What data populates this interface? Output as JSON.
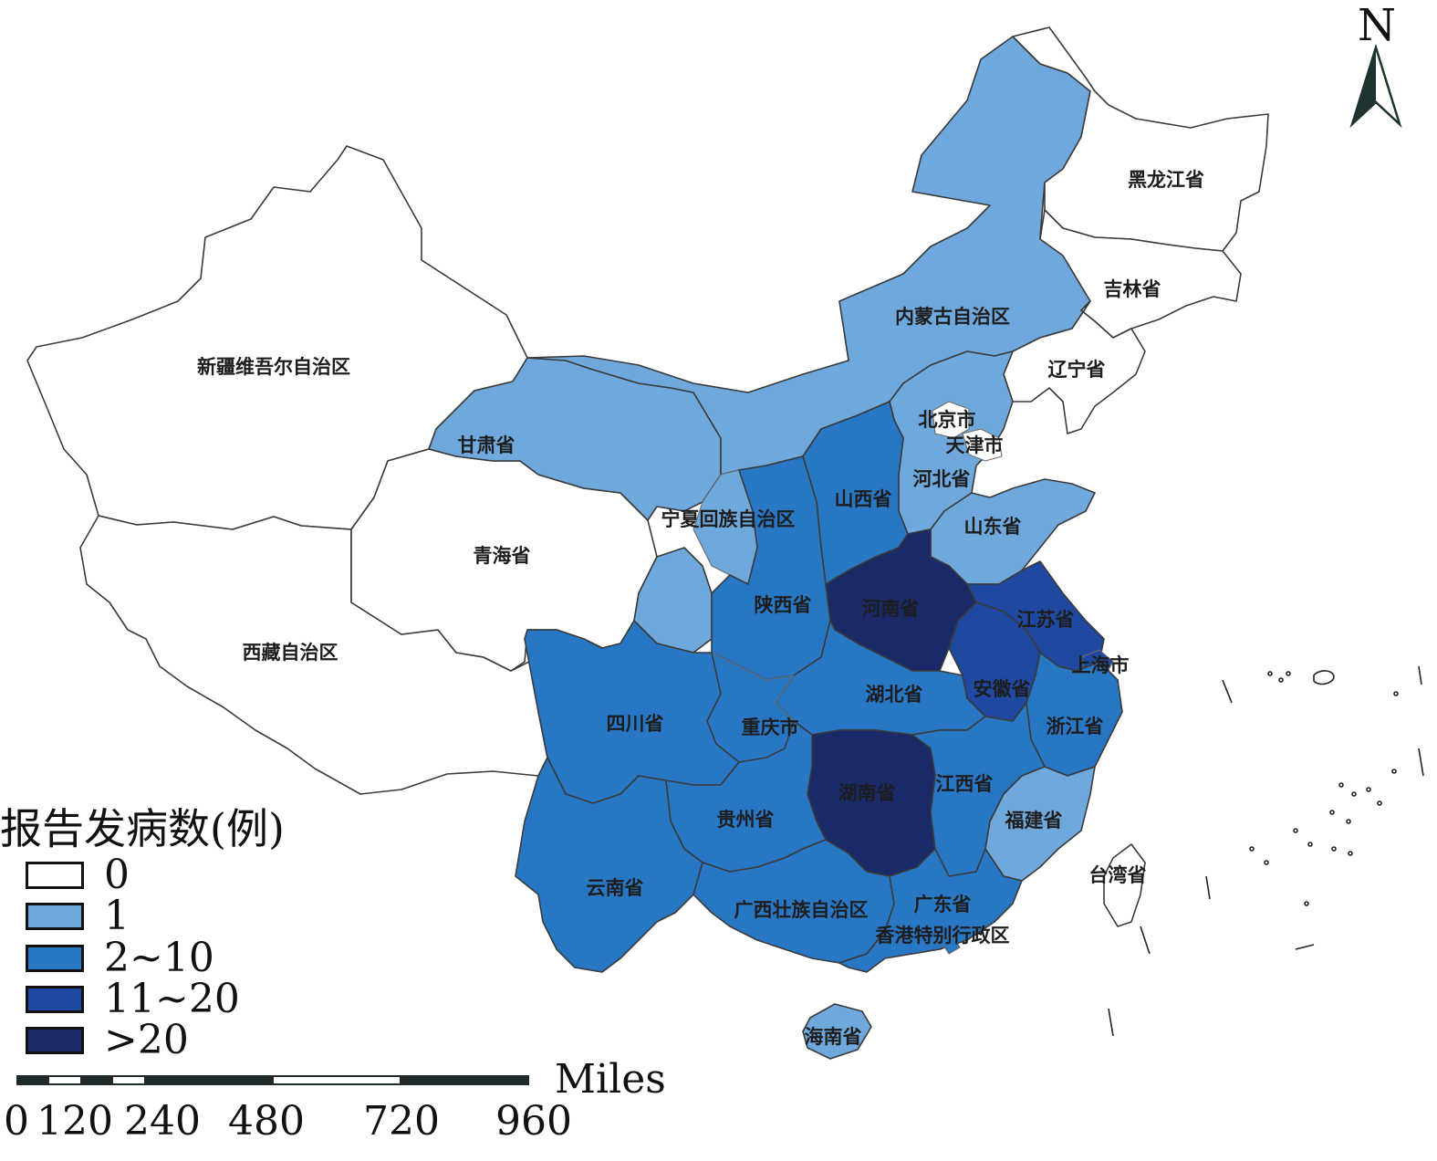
{
  "map": {
    "north_label": "N",
    "colors": {
      "zero": "#ffffff",
      "one": "#6fa8dc",
      "two_to_ten": "#2877c4",
      "eleven_to_twenty": "#1f49a1",
      "over_twenty": "#1a2a68"
    },
    "regions": [
      {
        "name": "新疆维吾尔自治区",
        "class": "0"
      },
      {
        "name": "西藏自治区",
        "class": "0"
      },
      {
        "name": "青海省",
        "class": "0"
      },
      {
        "name": "甘肃省",
        "class": "1"
      },
      {
        "name": "内蒙古自治区",
        "class": "1"
      },
      {
        "name": "黑龙江省",
        "class": "0"
      },
      {
        "name": "吉林省",
        "class": "0"
      },
      {
        "name": "辽宁省",
        "class": "0"
      },
      {
        "name": "北京市",
        "class": "0"
      },
      {
        "name": "天津市",
        "class": "0"
      },
      {
        "name": "河北省",
        "class": "1"
      },
      {
        "name": "山东省",
        "class": "1"
      },
      {
        "name": "宁夏回族自治区",
        "class": "1"
      },
      {
        "name": "山西省",
        "class": "2~10"
      },
      {
        "name": "陕西省",
        "class": "2~10"
      },
      {
        "name": "河南省",
        "class": ">20"
      },
      {
        "name": "江苏省",
        "class": "11~20"
      },
      {
        "name": "上海市",
        "class": "11~20"
      },
      {
        "name": "安徽省",
        "class": "11~20"
      },
      {
        "name": "湖北省",
        "class": "2~10"
      },
      {
        "name": "浙江省",
        "class": "2~10"
      },
      {
        "name": "四川省",
        "class": "2~10"
      },
      {
        "name": "重庆市",
        "class": "2~10"
      },
      {
        "name": "湖南省",
        "class": ">20"
      },
      {
        "name": "江西省",
        "class": "2~10"
      },
      {
        "name": "福建省",
        "class": "1"
      },
      {
        "name": "贵州省",
        "class": "2~10"
      },
      {
        "name": "云南省",
        "class": "2~10"
      },
      {
        "name": "广西壮族自治区",
        "class": "2~10"
      },
      {
        "name": "广东省",
        "class": "2~10"
      },
      {
        "name": "香港特别行政区",
        "class": "2~10"
      },
      {
        "name": "台湾省",
        "class": "0"
      },
      {
        "name": "海南省",
        "class": "1"
      }
    ]
  },
  "legend": {
    "title": "报告发病数(例)",
    "items": [
      {
        "label": "0",
        "color": "#ffffff"
      },
      {
        "label": "1",
        "color": "#6fa8dc"
      },
      {
        "label": "2~10",
        "color": "#2877c4"
      },
      {
        "label": "11~20",
        "color": "#1f49a1"
      },
      {
        "label": ">20",
        "color": "#1a2a68"
      }
    ]
  },
  "scale_bar": {
    "unit": "Miles",
    "ticks": [
      "0",
      "120",
      "240",
      "480",
      "720",
      "960"
    ]
  }
}
